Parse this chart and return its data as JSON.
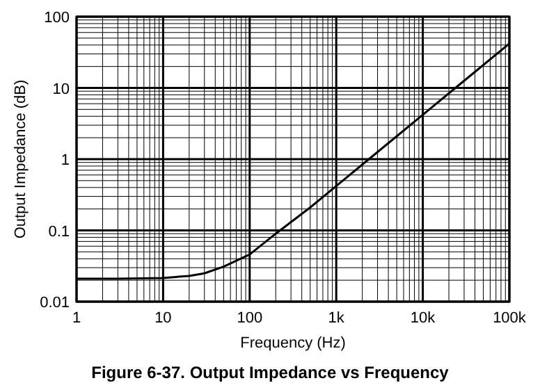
{
  "chart_data": {
    "type": "line",
    "title": "Figure 6-37. Output Impedance vs Frequency",
    "xlabel": "Frequency (Hz)",
    "ylabel": "Output Impedance (dB)",
    "log": "xy",
    "grid": true,
    "line_style": "solid",
    "xlim": [
      1,
      100000
    ],
    "ylim": [
      0.01,
      100
    ],
    "xticks": [
      1,
      10,
      100,
      {
        "value": 1000,
        "label": "1k"
      },
      {
        "value": 10000,
        "label": "10k"
      },
      {
        "value": 100000,
        "label": "100k"
      }
    ],
    "yticks": [
      0.01,
      0.1,
      1,
      10,
      100
    ],
    "series": [
      {
        "color": "#000000",
        "x": [
          1,
          3,
          10,
          20,
          30,
          50,
          100,
          200,
          500,
          1000,
          2000,
          5000,
          10000,
          20000,
          50000,
          100000
        ],
        "values": [
          0.021,
          0.021,
          0.0215,
          0.023,
          0.025,
          0.031,
          0.046,
          0.09,
          0.21,
          0.42,
          0.84,
          2.1,
          4.2,
          8.4,
          21,
          42
        ]
      }
    ]
  }
}
